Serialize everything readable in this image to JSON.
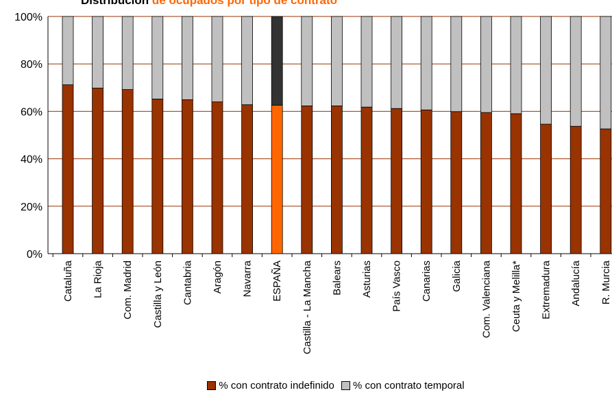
{
  "chart_data": {
    "type": "bar",
    "stacked": true,
    "title_part1": "Distribución ",
    "title_part2": "de ocupados por tipo de contrato",
    "ylabel": "",
    "xlabel": "",
    "ylim": [
      0,
      100
    ],
    "yticks": [
      "0%",
      "20%",
      "40%",
      "60%",
      "80%",
      "100%"
    ],
    "grid": true,
    "legend_position": "bottom",
    "categories": [
      "Cataluña",
      "La Rioja",
      "Com. Madrid",
      "Castilla y León",
      "Cantabria",
      "Aragón",
      "Navarra",
      "ESPAÑA",
      "Castilla - La Mancha",
      "Balears",
      "Asturias",
      "País Vasco",
      "Canarias",
      "Galicia",
      "Com. Valenciana",
      "Ceuta y Melilla*",
      "Extremadura",
      "Andalucía",
      "R. Murcia"
    ],
    "series": [
      {
        "name": "% con contrato indefinido",
        "color": "#993300",
        "highlight_color": "#ff6600",
        "values": [
          71.2,
          69.8,
          69.2,
          65.2,
          64.9,
          64.0,
          62.8,
          62.6,
          62.3,
          62.3,
          61.8,
          61.2,
          60.6,
          59.9,
          59.5,
          59.0,
          54.6,
          53.7,
          52.6
        ]
      },
      {
        "name": "% con contrato temporal",
        "color": "#c0c0c0",
        "highlight_color": "#333333",
        "values": [
          28.8,
          30.2,
          30.8,
          34.8,
          35.1,
          36.0,
          37.2,
          37.4,
          37.7,
          37.7,
          38.2,
          38.8,
          39.4,
          40.1,
          40.5,
          41.0,
          45.4,
          46.3,
          47.4
        ]
      }
    ],
    "highlight_category": "ESPAÑA"
  }
}
